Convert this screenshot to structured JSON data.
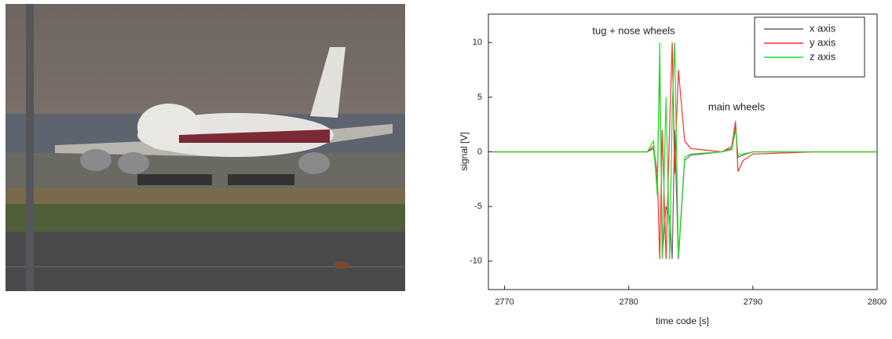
{
  "chart_data": {
    "type": "line",
    "xlabel": "time code [s]",
    "ylabel": "signal [V]",
    "annotations": [
      "tug + nose wheels",
      "main wheels"
    ],
    "x": [
      2769,
      2781.5,
      2782,
      2782.3,
      2782.5,
      2782.7,
      2783,
      2783.3,
      2783.5,
      2783.7,
      2784,
      2784.5,
      2785,
      2787.5,
      2788.3,
      2788.6,
      2788.8,
      2789.2,
      2790,
      2795,
      2800
    ],
    "series": [
      {
        "name": "x axis",
        "color": "#666666",
        "values": [
          0,
          0,
          0.3,
          -3,
          8.5,
          -9.5,
          -5,
          -6,
          -9.8,
          2,
          -9.8,
          -0.8,
          -0.3,
          0,
          0.3,
          2.5,
          -0.5,
          -0.3,
          0,
          0,
          0
        ]
      },
      {
        "name": "y axis",
        "color": "#ff3030",
        "values": [
          0,
          0,
          0.5,
          -2,
          -9.8,
          2,
          -9.8,
          2.5,
          10,
          -2,
          7.5,
          1,
          0.3,
          0,
          0.5,
          2.8,
          -1.8,
          -0.8,
          -0.2,
          0,
          0
        ]
      },
      {
        "name": "z axis",
        "color": "#22dd22",
        "values": [
          0,
          0,
          1,
          -4,
          10,
          -9.8,
          5,
          -9.8,
          4,
          10,
          -9.5,
          -0.5,
          -0.2,
          0,
          0.2,
          2,
          -0.3,
          -0.2,
          0,
          0,
          0
        ]
      }
    ],
    "xlim": [
      2768.7,
      2800
    ],
    "xticks": [
      2770,
      2780,
      2790,
      2800
    ],
    "ylim": [
      -12.6,
      12.6
    ],
    "yticks": [
      -10,
      -5,
      0,
      5,
      10
    ],
    "legend": "upper right",
    "grid": false
  }
}
